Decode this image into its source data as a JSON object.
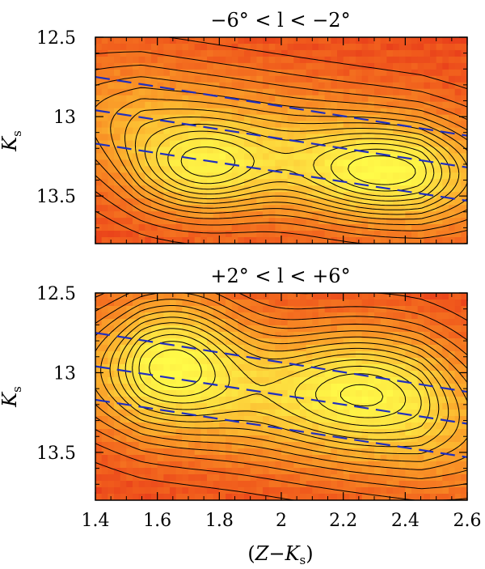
{
  "chart_data": [
    {
      "type": "heatmap",
      "title": "−6° < l < −2°",
      "xlabel": "",
      "ylabel": "K_s",
      "ylim": [
        13.8,
        12.5
      ],
      "xlim": [
        1.4,
        2.6
      ],
      "yticks": [
        12.5,
        13,
        13.5
      ],
      "ytick_labels": [
        "12.5",
        "13",
        "13.5"
      ],
      "xticks": [
        1.4,
        1.6,
        1.8,
        2.0,
        2.2,
        2.4,
        2.6
      ],
      "xtick_labels": [],
      "colormap": [
        "#e0201a",
        "#f05a1c",
        "#f88a24",
        "#fcb830",
        "#fde040",
        "#fffb48"
      ],
      "contour_color": "#000000",
      "blobs": [
        {
          "x": 1.74,
          "y": 13.35,
          "sx": 0.16,
          "sy": 0.2,
          "amp": 1.0
        },
        {
          "x": 2.32,
          "y": 13.36,
          "sx": 0.2,
          "sy": 0.2,
          "amp": 1.0
        }
      ],
      "reference_lines": {
        "color": "#1f2fbf",
        "style": "dashed",
        "lines": [
          {
            "x": [
              1.4,
              2.6
            ],
            "y": [
              12.75,
              13.12
            ]
          },
          {
            "x": [
              1.4,
              2.6
            ],
            "y": [
              12.96,
              13.32
            ]
          },
          {
            "x": [
              1.4,
              2.6
            ],
            "y": [
              13.17,
              13.53
            ]
          }
        ]
      }
    },
    {
      "type": "heatmap",
      "title": "+2° < l < +6°",
      "xlabel": "(Z−K_s)",
      "ylabel": "K_s",
      "ylim": [
        13.8,
        12.5
      ],
      "xlim": [
        1.4,
        2.6
      ],
      "yticks": [
        12.5,
        13,
        13.5
      ],
      "ytick_labels": [
        "12.5",
        "13",
        "13.5"
      ],
      "xticks": [
        1.4,
        1.6,
        1.8,
        2.0,
        2.2,
        2.4,
        2.6
      ],
      "xtick_labels": [
        "1.4",
        "1.6",
        "1.8",
        "2",
        "2.2",
        "2.4",
        "2.6"
      ],
      "colormap": [
        "#e0201a",
        "#f05a1c",
        "#f88a24",
        "#fcb830",
        "#fde040",
        "#fffb48"
      ],
      "contour_color": "#000000",
      "blobs": [
        {
          "x": 1.66,
          "y": 12.88,
          "sx": 0.15,
          "sy": 0.28,
          "amp": 1.0
        },
        {
          "x": 2.28,
          "y": 13.05,
          "sx": 0.22,
          "sy": 0.26,
          "amp": 0.95
        }
      ],
      "reference_lines": {
        "color": "#1f2fbf",
        "style": "dashed",
        "lines": [
          {
            "x": [
              1.4,
              2.6
            ],
            "y": [
              12.75,
              13.12
            ]
          },
          {
            "x": [
              1.4,
              2.6
            ],
            "y": [
              12.96,
              13.32
            ]
          },
          {
            "x": [
              1.4,
              2.6
            ],
            "y": [
              13.17,
              13.53
            ]
          }
        ]
      }
    }
  ]
}
